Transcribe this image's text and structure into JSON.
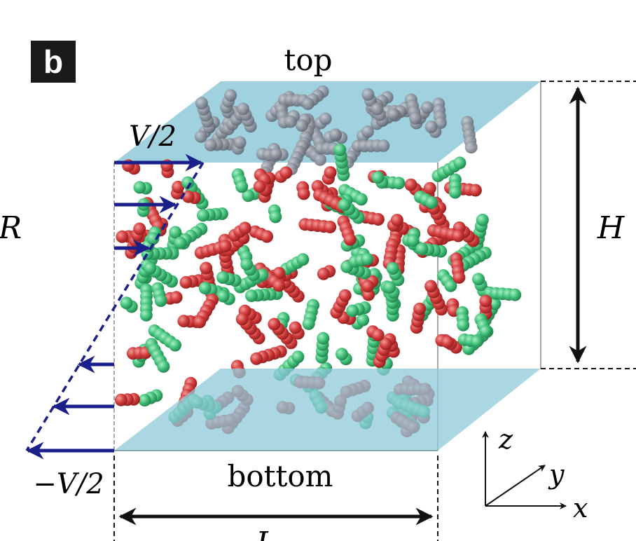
{
  "panel": {
    "label": "b"
  },
  "labels": {
    "top": "top",
    "bottom": "bottom",
    "velocity_top": "V/2",
    "velocity_bottom": "−V/2",
    "height": "H",
    "length": "L",
    "left_cut": "R",
    "axis_z": "z",
    "axis_y": "y",
    "axis_x": "x"
  },
  "colors": {
    "plate": "#8fc9d9",
    "arrow": "#1b1f8a",
    "particle_red": "#d13a3a",
    "particle_green": "#3fbf77",
    "particle_grey": "#8a8f9a",
    "frame": "#7a7a7a"
  }
}
